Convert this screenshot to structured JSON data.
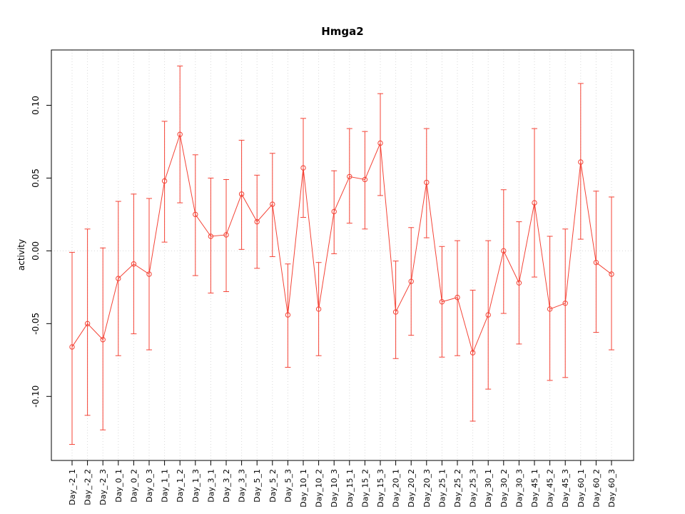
{
  "chart_data": {
    "type": "line",
    "title": "Hmga2",
    "xlabel": "",
    "ylabel": "activity",
    "categories": [
      "Day_-2_1",
      "Day_-2_2",
      "Day_-2_3",
      "Day_0_1",
      "Day_0_2",
      "Day_0_3",
      "Day_1_1",
      "Day_1_2",
      "Day_1_3",
      "Day_3_1",
      "Day_3_2",
      "Day_3_3",
      "Day_5_1",
      "Day_5_2",
      "Day_5_3",
      "Day_10_1",
      "Day_10_2",
      "Day_10_3",
      "Day_15_1",
      "Day_15_2",
      "Day_15_3",
      "Day_20_1",
      "Day_20_2",
      "Day_20_3",
      "Day_25_1",
      "Day_25_2",
      "Day_25_3",
      "Day_30_1",
      "Day_30_2",
      "Day_30_3",
      "Day_45_1",
      "Day_45_2",
      "Day_45_3",
      "Day_60_1",
      "Day_60_2",
      "Day_60_3"
    ],
    "series": [
      {
        "name": "activity",
        "values": [
          -0.066,
          -0.05,
          -0.061,
          -0.019,
          -0.009,
          -0.016,
          0.048,
          0.08,
          0.025,
          0.01,
          0.011,
          0.039,
          0.02,
          0.032,
          -0.044,
          0.057,
          -0.04,
          0.027,
          0.051,
          0.049,
          0.074,
          -0.042,
          -0.021,
          0.047,
          -0.035,
          -0.032,
          -0.07,
          -0.044,
          0.0,
          -0.022,
          0.033,
          -0.04,
          -0.036,
          0.061,
          -0.008,
          -0.016
        ],
        "error_upper": [
          -0.001,
          0.015,
          0.002,
          0.034,
          0.039,
          0.036,
          0.089,
          0.127,
          0.066,
          0.05,
          0.049,
          0.076,
          0.052,
          0.067,
          -0.009,
          0.091,
          -0.008,
          0.055,
          0.084,
          0.082,
          0.108,
          -0.007,
          0.016,
          0.084,
          0.003,
          0.007,
          -0.027,
          0.007,
          0.042,
          0.02,
          0.084,
          0.01,
          0.015,
          0.115,
          0.041,
          0.037
        ],
        "error_lower": [
          -0.133,
          -0.113,
          -0.123,
          -0.072,
          -0.057,
          -0.068,
          0.006,
          0.033,
          -0.017,
          -0.029,
          -0.028,
          0.001,
          -0.012,
          -0.004,
          -0.08,
          0.023,
          -0.072,
          -0.002,
          0.019,
          0.015,
          0.038,
          -0.074,
          -0.058,
          0.009,
          -0.073,
          -0.072,
          -0.117,
          -0.095,
          -0.043,
          -0.064,
          -0.018,
          -0.089,
          -0.087,
          0.008,
          -0.056,
          -0.068
        ]
      }
    ],
    "ylim": [
      -0.144,
      0.138
    ],
    "yticks": [
      -0.1,
      -0.05,
      0.0,
      0.05,
      0.1
    ],
    "grid": "vertical dotted gridlines at each category plus dotted horizontal line at y=0",
    "legend": "none",
    "line_color": "#f44336",
    "grid_color": "#d9d9d9",
    "axis_color": "#000000"
  }
}
